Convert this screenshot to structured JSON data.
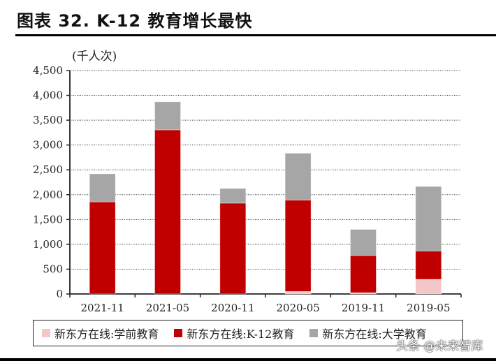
{
  "title": "图表 32. K-12 教育增长最快",
  "unit_label": "(千人次)",
  "watermark": "头条 @未来智库",
  "chart_data": {
    "type": "bar",
    "stacked": true,
    "title": "图表 32. K-12 教育增长最快",
    "xlabel": "",
    "ylabel": "(千人次)",
    "ylim": [
      0,
      4500
    ],
    "yticks": [
      0,
      500,
      1000,
      1500,
      2000,
      2500,
      3000,
      3500,
      4000,
      4500
    ],
    "ytick_labels": [
      "0",
      "500",
      "1,000",
      "1,500",
      "2,000",
      "2,500",
      "3,000",
      "3,500",
      "4,000",
      "4,500"
    ],
    "grid": "horizontal dotted",
    "legend_position": "bottom",
    "categories": [
      "2021-11",
      "2021-05",
      "2020-11",
      "2020-05",
      "2019-11",
      "2019-05"
    ],
    "series": [
      {
        "name": "新东方在线:学前教育",
        "color": "#f4c6c8",
        "values": [
          0,
          0,
          0,
          50,
          25,
          295
        ]
      },
      {
        "name": "新东方在线:K-12教育",
        "color": "#c00000",
        "values": [
          1855,
          3305,
          1830,
          1840,
          750,
          570
        ]
      },
      {
        "name": "新东方在线:大学教育",
        "color": "#a6a6a6",
        "values": [
          565,
          565,
          295,
          945,
          525,
          1300
        ]
      }
    ]
  }
}
